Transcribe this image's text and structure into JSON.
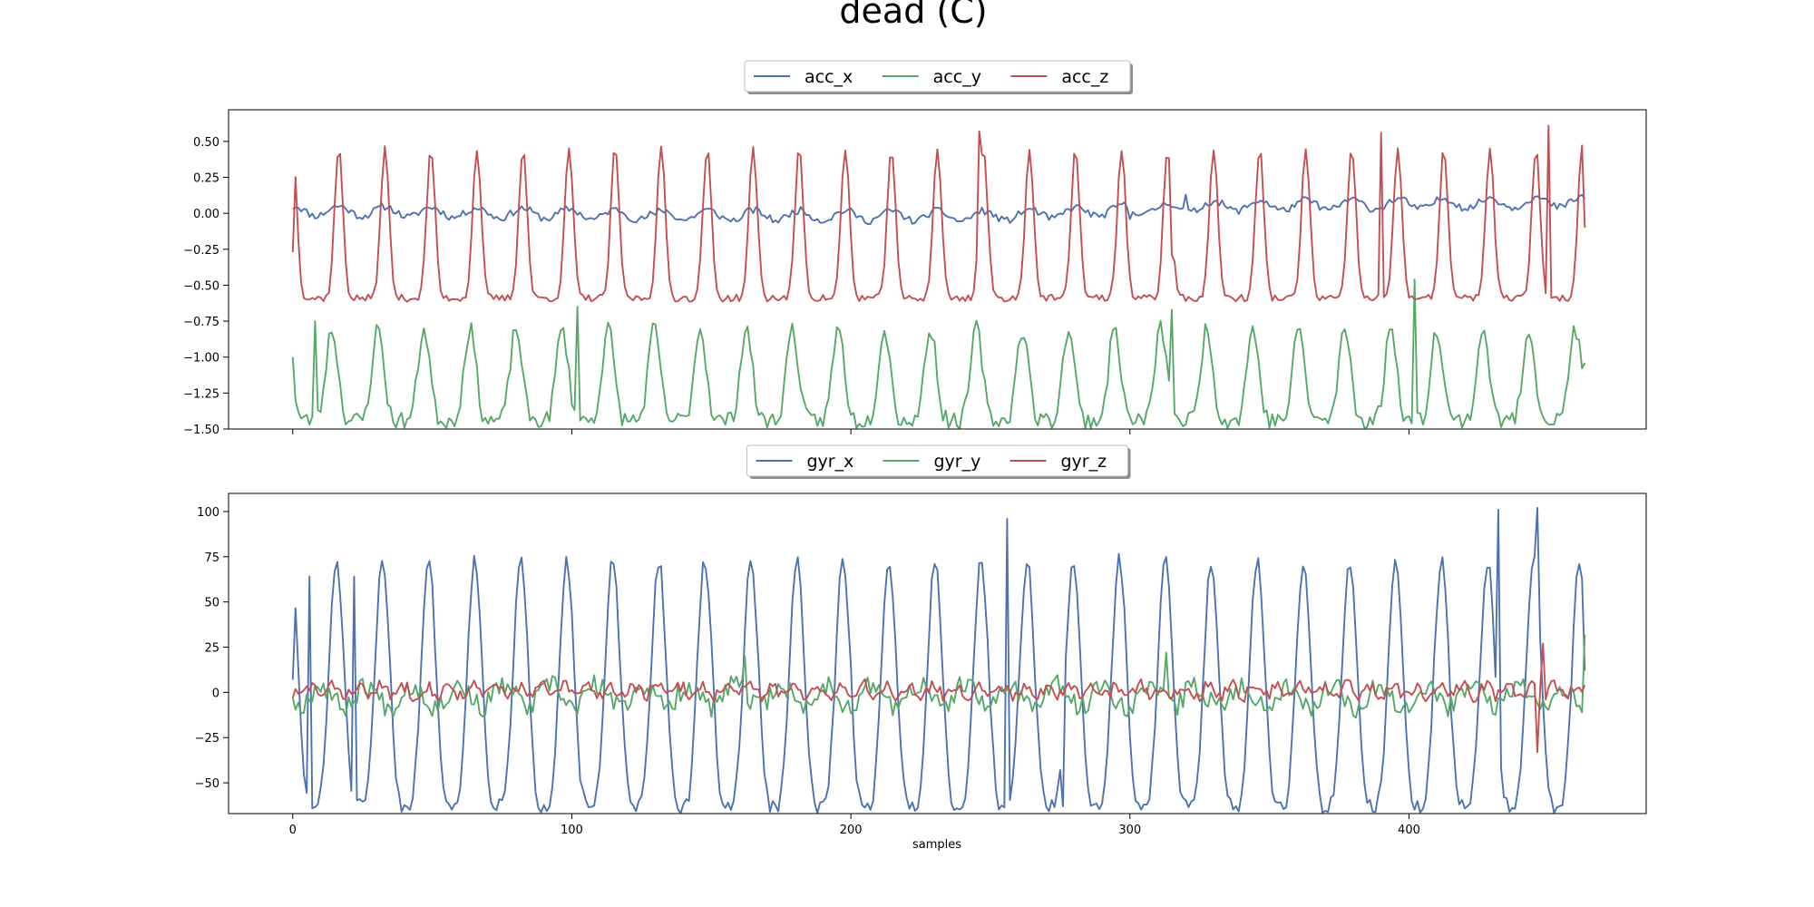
{
  "figure": {
    "title": "dead (C)",
    "xlabel": "samples"
  },
  "colors": {
    "x": "#4c72b0",
    "y": "#55a868",
    "z": "#c44e52"
  },
  "chart_data": [
    {
      "type": "line",
      "title": "",
      "xlabel": "",
      "ylabel": "",
      "xlim": [
        -23,
        485
      ],
      "ylim": [
        -1.5,
        0.72
      ],
      "x_ticks": [
        0,
        100,
        200,
        300,
        400
      ],
      "x_tick_labels": [
        "",
        "",
        "",
        "",
        ""
      ],
      "y_ticks": [
        -1.5,
        -1.25,
        -1.0,
        -0.75,
        -0.5,
        -0.25,
        0.0,
        0.25,
        0.5
      ],
      "y_tick_labels": [
        "−1.50",
        "−1.25",
        "−1.00",
        "−0.75",
        "−0.50",
        "−0.25",
        "0.00",
        "0.25",
        "0.50"
      ],
      "grid": false,
      "legend": "top-center",
      "n_samples": 464,
      "series": [
        {
          "name": "acc_x",
          "color": "#4c72b0",
          "gen": {
            "base": 0.0,
            "amp": 0.035,
            "period": 16.5,
            "phase": 0.0,
            "sharp": 1,
            "noise": 0.025,
            "seed": 11,
            "drift": [
              [
                0,
                0.02
              ],
              [
                120,
                -0.01
              ],
              [
                250,
                -0.02
              ],
              [
                330,
                0.05
              ],
              [
                464,
                0.08
              ]
            ]
          },
          "points": [
            [
              0,
              0.03
            ],
            [
              60,
              -0.02
            ],
            [
              130,
              -0.01
            ],
            [
              160,
              -0.05
            ],
            [
              300,
              -0.04
            ],
            [
              320,
              0.13
            ],
            [
              360,
              0.08
            ],
            [
              463,
              0.1
            ]
          ]
        },
        {
          "name": "acc_y",
          "color": "#55a868",
          "gen": {
            "base": -1.12,
            "amp": 0.32,
            "period": 16.5,
            "phase": 0.15,
            "sharp": 3,
            "noise": 0.06,
            "seed": 23,
            "drift": []
          },
          "points": [
            [
              0,
              -1.0
            ],
            [
              8,
              -0.75
            ],
            [
              102,
              -0.65
            ],
            [
              315,
              -0.67
            ],
            [
              356,
              -1.42
            ],
            [
              402,
              -0.46
            ],
            [
              463,
              -1.04
            ]
          ]
        },
        {
          "name": "acc_z",
          "color": "#c44e52",
          "gen": {
            "base": -0.07,
            "amp": 0.52,
            "period": 16.5,
            "phase": 0.0,
            "sharp": 6,
            "noise": 0.025,
            "seed": 37,
            "drift": []
          },
          "points": [
            [
              0,
              -0.27
            ],
            [
              246,
              0.57
            ],
            [
              315,
              -0.29
            ],
            [
              390,
              0.56
            ],
            [
              450,
              0.61
            ],
            [
              463,
              -0.1
            ]
          ]
        }
      ]
    },
    {
      "type": "line",
      "title": "",
      "xlabel": "samples",
      "ylabel": "",
      "xlim": [
        -23,
        485
      ],
      "ylim": [
        -67,
        110
      ],
      "x_ticks": [
        0,
        100,
        200,
        300,
        400
      ],
      "x_tick_labels": [
        "0",
        "100",
        "200",
        "300",
        "400"
      ],
      "y_ticks": [
        -50,
        -25,
        0,
        25,
        50,
        75,
        100
      ],
      "y_tick_labels": [
        "−50",
        "−25",
        "0",
        "25",
        "50",
        "75",
        "100"
      ],
      "grid": false,
      "legend": "top-center",
      "n_samples": 464,
      "series": [
        {
          "name": "gyr_x",
          "color": "#4c72b0",
          "gen": {
            "base": 5.0,
            "amp": 68.0,
            "period": 16.5,
            "phase": 0.05,
            "sharp": 2,
            "noise": 4.0,
            "seed": 51,
            "drift": []
          },
          "points": [
            [
              0,
              7
            ],
            [
              6,
              64
            ],
            [
              22,
              64
            ],
            [
              256,
              96
            ],
            [
              276,
              -63
            ],
            [
              432,
              101
            ],
            [
              436,
              -66
            ],
            [
              446,
              102
            ],
            [
              463,
              12
            ]
          ]
        },
        {
          "name": "gyr_y",
          "color": "#55a868",
          "gen": {
            "base": -2.0,
            "amp": 6.0,
            "period": 16.5,
            "phase": 0.4,
            "sharp": 1,
            "noise": 6.0,
            "seed": 67,
            "drift": []
          },
          "points": [
            [
              0,
              -3
            ],
            [
              162,
              20
            ],
            [
              313,
              22
            ],
            [
              463,
              32
            ]
          ]
        },
        {
          "name": "gyr_z",
          "color": "#c44e52",
          "gen": {
            "base": 1.0,
            "amp": 3.0,
            "period": 8.25,
            "phase": 0.2,
            "sharp": 1,
            "noise": 3.5,
            "seed": 83,
            "drift": []
          },
          "points": [
            [
              0,
              -3
            ],
            [
              446,
              -33
            ],
            [
              448,
              27
            ],
            [
              463,
              4
            ]
          ]
        }
      ]
    }
  ]
}
